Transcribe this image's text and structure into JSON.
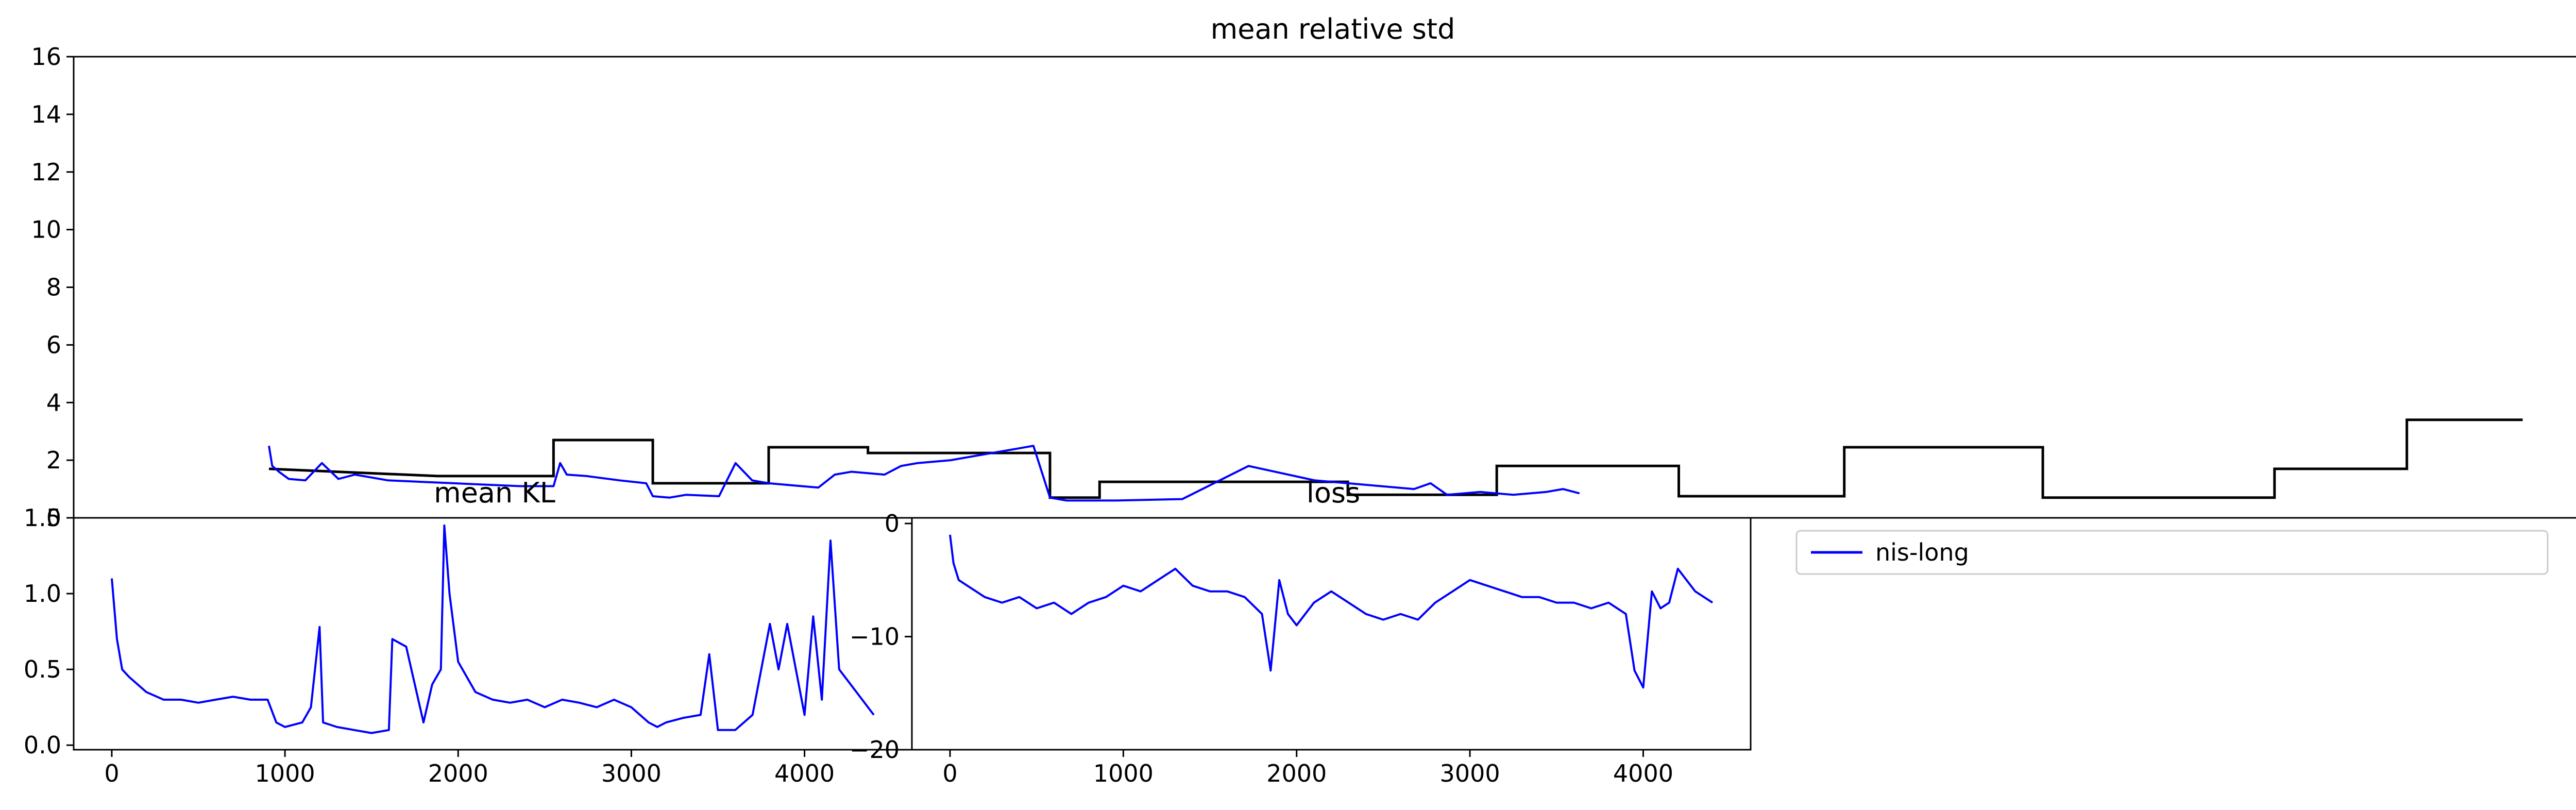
{
  "chart_data": [
    {
      "type": "line",
      "title": "mean relative std",
      "xlabel": "",
      "ylabel": "",
      "ylim": [
        0,
        16
      ],
      "xlim": [
        -150,
        7450
      ],
      "x_ticks": [],
      "y_ticks": [
        0,
        2,
        4,
        6,
        8,
        10,
        12,
        14,
        16
      ],
      "grid": false,
      "series": [
        {
          "name": "",
          "color": "#000000",
          "style": "step",
          "x": [
            440,
            950,
            1300,
            1300,
            1600,
            1600,
            1950,
            1950,
            2250,
            2250,
            2800,
            2800,
            2950,
            2950,
            3700,
            3700,
            4150,
            4150,
            4700,
            4700,
            5200,
            5200,
            5800,
            5800,
            6500,
            6500,
            6900,
            6900,
            7250
          ],
          "values": [
            1.7,
            1.45,
            1.45,
            2.7,
            2.7,
            1.2,
            1.2,
            2.45,
            2.45,
            2.25,
            2.25,
            0.7,
            0.7,
            1.25,
            1.25,
            0.8,
            0.8,
            1.8,
            1.8,
            0.75,
            0.75,
            2.45,
            2.45,
            0.7,
            0.7,
            1.7,
            1.7,
            3.4,
            3.4
          ]
        },
        {
          "name": "",
          "color": "#0000ff",
          "style": "line",
          "x": [
            440,
            450,
            470,
            500,
            550,
            600,
            650,
            700,
            800,
            900,
            1000,
            1100,
            1200,
            1300,
            1320,
            1340,
            1400,
            1500,
            1580,
            1600,
            1650,
            1700,
            1800,
            1850,
            1900,
            1950,
            2050,
            2100,
            2150,
            2200,
            2300,
            2350,
            2400,
            2500,
            2600,
            2700,
            2750,
            2800,
            2850,
            3000,
            3200,
            3400,
            3600,
            3800,
            3900,
            3950,
            4000,
            4100,
            4200,
            4300,
            4350,
            4400
          ],
          "values": [
            2.5,
            1.8,
            1.6,
            1.35,
            1.3,
            1.9,
            1.35,
            1.5,
            1.3,
            1.25,
            1.2,
            1.15,
            1.1,
            1.1,
            1.9,
            1.5,
            1.45,
            1.3,
            1.2,
            0.75,
            0.7,
            0.8,
            0.75,
            1.9,
            1.3,
            1.2,
            1.1,
            1.05,
            1.5,
            1.6,
            1.5,
            1.8,
            1.9,
            2.0,
            2.2,
            2.4,
            2.5,
            0.7,
            0.6,
            0.6,
            0.65,
            1.8,
            1.3,
            1.1,
            1.0,
            1.2,
            0.8,
            0.9,
            0.8,
            0.9,
            1.0,
            0.85
          ]
        }
      ]
    },
    {
      "type": "line",
      "title": "mean KL",
      "xlabel": "",
      "ylabel": "",
      "xlim": [
        -220,
        4620
      ],
      "ylim": [
        -0.03,
        1.5
      ],
      "x_ticks": [
        0,
        1000,
        2000,
        3000,
        4000
      ],
      "y_ticks": [
        0.0,
        0.5,
        1.0,
        1.5
      ],
      "y_tick_labels": [
        "0.0",
        "0.5",
        "1.0",
        "1.5"
      ],
      "grid": false,
      "series": [
        {
          "name": "nis-long",
          "color": "#0000ff",
          "x": [
            0,
            30,
            60,
            100,
            150,
            200,
            300,
            400,
            500,
            600,
            700,
            800,
            900,
            950,
            1000,
            1100,
            1150,
            1200,
            1220,
            1300,
            1400,
            1500,
            1600,
            1620,
            1700,
            1800,
            1850,
            1900,
            1920,
            1950,
            2000,
            2100,
            2200,
            2300,
            2400,
            2500,
            2600,
            2700,
            2800,
            2900,
            3000,
            3100,
            3150,
            3200,
            3300,
            3400,
            3450,
            3500,
            3600,
            3700,
            3800,
            3850,
            3900,
            4000,
            4050,
            4100,
            4150,
            4200,
            4300,
            4400
          ],
          "values": [
            1.1,
            0.7,
            0.5,
            0.45,
            0.4,
            0.35,
            0.3,
            0.3,
            0.28,
            0.3,
            0.32,
            0.3,
            0.3,
            0.15,
            0.12,
            0.15,
            0.25,
            0.78,
            0.15,
            0.12,
            0.1,
            0.08,
            0.1,
            0.7,
            0.65,
            0.15,
            0.4,
            0.5,
            1.45,
            1.0,
            0.55,
            0.35,
            0.3,
            0.28,
            0.3,
            0.25,
            0.3,
            0.28,
            0.25,
            0.3,
            0.25,
            0.15,
            0.12,
            0.15,
            0.18,
            0.2,
            0.6,
            0.1,
            0.1,
            0.2,
            0.8,
            0.5,
            0.8,
            0.2,
            0.85,
            0.3,
            1.35,
            0.5,
            0.35,
            0.2
          ]
        }
      ]
    },
    {
      "type": "line",
      "title": "loss",
      "xlabel": "",
      "ylabel": "",
      "xlim": [
        -220,
        4620
      ],
      "ylim": [
        -20,
        0.5
      ],
      "x_ticks": [
        0,
        1000,
        2000,
        3000,
        4000
      ],
      "y_ticks": [
        0,
        -10,
        -20
      ],
      "y_tick_labels": [
        "0",
        "−10",
        "−20"
      ],
      "grid": false,
      "series": [
        {
          "name": "nis-long",
          "color": "#0000ff",
          "x": [
            0,
            20,
            50,
            100,
            150,
            200,
            300,
            400,
            500,
            600,
            700,
            800,
            900,
            1000,
            1100,
            1200,
            1300,
            1400,
            1500,
            1600,
            1700,
            1800,
            1850,
            1900,
            1950,
            2000,
            2100,
            2200,
            2300,
            2400,
            2500,
            2600,
            2700,
            2800,
            2900,
            3000,
            3100,
            3200,
            3300,
            3400,
            3500,
            3600,
            3700,
            3800,
            3900,
            3950,
            4000,
            4050,
            4100,
            4150,
            4200,
            4300,
            4400
          ],
          "values": [
            -1,
            -3.5,
            -5,
            -5.5,
            -6,
            -6.5,
            -7,
            -6.5,
            -7.5,
            -7,
            -8,
            -7,
            -6.5,
            -5.5,
            -6,
            -5,
            -4,
            -5.5,
            -6,
            -6,
            -6.5,
            -8,
            -13,
            -5,
            -8,
            -9,
            -7,
            -6,
            -7,
            -8,
            -8.5,
            -8,
            -8.5,
            -7,
            -6,
            -5,
            -5.5,
            -6,
            -6.5,
            -6.5,
            -7,
            -7,
            -7.5,
            -7,
            -8,
            -13,
            -14.5,
            -6,
            -7.5,
            -7,
            -4,
            -6,
            -7
          ]
        }
      ]
    }
  ],
  "legend": {
    "entries": [
      {
        "label": "nis-long",
        "color": "#0000ff"
      }
    ],
    "placement": "top-left"
  }
}
